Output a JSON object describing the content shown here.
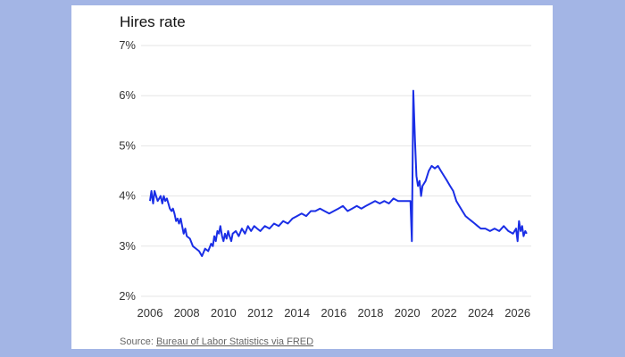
{
  "chart_data": {
    "type": "line",
    "title": "Hires rate",
    "xlabel": "",
    "ylabel": "",
    "xlim": [
      2006,
      2026.6
    ],
    "ylim": [
      2,
      7
    ],
    "x_ticks": [
      "2006",
      "2008",
      "2010",
      "2012",
      "2014",
      "2016",
      "2018",
      "2020",
      "2022",
      "2024",
      "2026"
    ],
    "y_ticks": [
      "2%",
      "3%",
      "4%",
      "5%",
      "6%",
      "7%"
    ],
    "grid": "horizontal",
    "color": "#1a2ee6",
    "series": [
      {
        "x": [
          2006.0,
          2006.08,
          2006.17,
          2006.25,
          2006.33,
          2006.42,
          2006.5,
          2006.58,
          2006.67,
          2006.75,
          2006.83,
          2006.92,
          2007.0,
          2007.08,
          2007.17,
          2007.25,
          2007.33,
          2007.42,
          2007.5,
          2007.58,
          2007.67,
          2007.75,
          2007.83,
          2007.92,
          2008.0,
          2008.17,
          2008.33,
          2008.5,
          2008.67,
          2008.83,
          2009.0,
          2009.17,
          2009.33,
          2009.42,
          2009.5,
          2009.58,
          2009.67,
          2009.75,
          2009.83,
          2009.92,
          2010.0,
          2010.08,
          2010.17,
          2010.25,
          2010.33,
          2010.42,
          2010.5,
          2010.67,
          2010.83,
          2011.0,
          2011.17,
          2011.33,
          2011.5,
          2011.67,
          2011.83,
          2012.0,
          2012.25,
          2012.5,
          2012.75,
          2013.0,
          2013.25,
          2013.5,
          2013.75,
          2014.0,
          2014.25,
          2014.5,
          2014.75,
          2015.0,
          2015.25,
          2015.5,
          2015.75,
          2016.0,
          2016.25,
          2016.5,
          2016.75,
          2017.0,
          2017.25,
          2017.5,
          2017.75,
          2018.0,
          2018.25,
          2018.5,
          2018.75,
          2019.0,
          2019.25,
          2019.5,
          2019.75,
          2020.0,
          2020.17,
          2020.25,
          2020.33,
          2020.42,
          2020.5,
          2020.58,
          2020.67,
          2020.75,
          2020.83,
          2021.0,
          2021.17,
          2021.33,
          2021.5,
          2021.67,
          2021.83,
          2022.0,
          2022.17,
          2022.33,
          2022.5,
          2022.67,
          2022.83,
          2023.0,
          2023.17,
          2023.33,
          2023.5,
          2023.67,
          2023.83,
          2024.0,
          2024.25,
          2024.5,
          2024.75,
          2025.0,
          2025.25,
          2025.5,
          2025.75,
          2025.92,
          2026.0,
          2026.08,
          2026.17,
          2026.25,
          2026.33,
          2026.42,
          2026.5
        ],
        "values": [
          3.9,
          4.1,
          3.85,
          4.1,
          4.0,
          3.9,
          3.95,
          4.0,
          3.85,
          4.0,
          3.9,
          3.95,
          3.85,
          3.75,
          3.7,
          3.75,
          3.65,
          3.5,
          3.55,
          3.45,
          3.55,
          3.4,
          3.25,
          3.35,
          3.2,
          3.15,
          3.0,
          2.95,
          2.9,
          2.8,
          2.95,
          2.9,
          3.05,
          3.0,
          3.2,
          3.1,
          3.3,
          3.25,
          3.4,
          3.2,
          3.1,
          3.25,
          3.15,
          3.3,
          3.2,
          3.1,
          3.25,
          3.3,
          3.2,
          3.35,
          3.25,
          3.4,
          3.3,
          3.4,
          3.35,
          3.3,
          3.4,
          3.35,
          3.45,
          3.4,
          3.5,
          3.45,
          3.55,
          3.6,
          3.65,
          3.6,
          3.7,
          3.7,
          3.75,
          3.7,
          3.65,
          3.7,
          3.75,
          3.8,
          3.7,
          3.75,
          3.8,
          3.75,
          3.8,
          3.85,
          3.9,
          3.85,
          3.9,
          3.85,
          3.95,
          3.9,
          3.9,
          3.9,
          3.9,
          3.1,
          6.1,
          5.1,
          4.4,
          4.2,
          4.3,
          4.0,
          4.2,
          4.3,
          4.5,
          4.6,
          4.55,
          4.6,
          4.5,
          4.4,
          4.3,
          4.2,
          4.1,
          3.9,
          3.8,
          3.7,
          3.6,
          3.55,
          3.5,
          3.45,
          3.4,
          3.35,
          3.35,
          3.3,
          3.35,
          3.3,
          3.4,
          3.3,
          3.25,
          3.35,
          3.1,
          3.5,
          3.3,
          3.4,
          3.2,
          3.3,
          3.25
        ]
      }
    ]
  },
  "source": {
    "prefix": "Source: ",
    "link_text": "Bureau of Labor Statistics via FRED"
  }
}
